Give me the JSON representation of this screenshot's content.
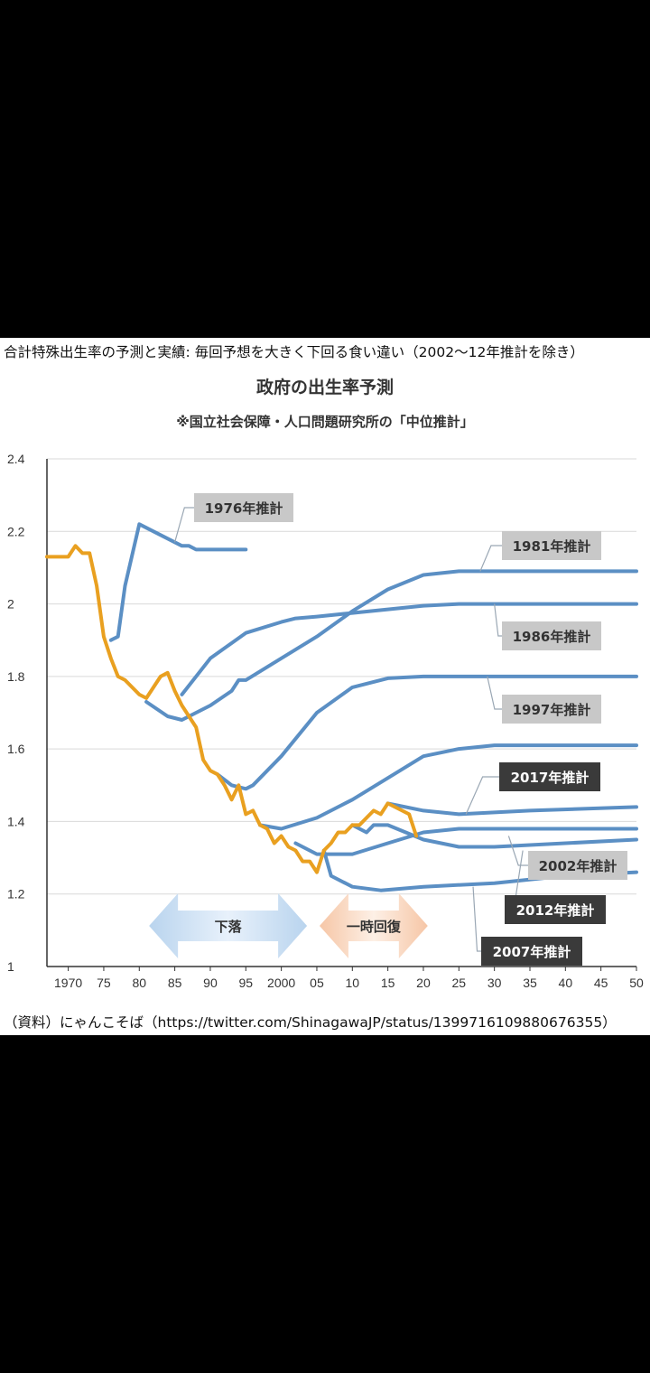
{
  "headline": "合計特殊出生率の予測と実績: 毎回予想を大きく下回る食い違い（2002〜12年推計を除き）",
  "source": "（資料）にゃんこそば（https://twitter.com/ShinagawaJP/status/1399716109880676355）",
  "colors": {
    "projection": "#5b8fc4",
    "actual": "#e9a020",
    "label_gray": "#c8c8c8",
    "label_dark": "#3a3a3a"
  },
  "chart_data": {
    "type": "line",
    "title": "政府の出生率予測",
    "subtitle": "※国立社会保障・人口問題研究所の「中位推計」",
    "xlim": [
      1967,
      2050
    ],
    "ylim": [
      1,
      2.4
    ],
    "y_ticks": [
      "1",
      "1.2",
      "1.4",
      "1.6",
      "1.8",
      "2",
      "2.2",
      "2.4"
    ],
    "y_tick_values": [
      1,
      1.2,
      1.4,
      1.6,
      1.8,
      2.0,
      2.2,
      2.4
    ],
    "x_ticks": [
      "1970",
      "75",
      "80",
      "85",
      "90",
      "95",
      "2000",
      "05",
      "10",
      "15",
      "20",
      "25",
      "30",
      "35",
      "40",
      "45",
      "50"
    ],
    "x_tick_values": [
      1970,
      1975,
      1980,
      1985,
      1990,
      1995,
      2000,
      2005,
      2010,
      2015,
      2020,
      2025,
      2030,
      2035,
      2040,
      2045,
      2050
    ],
    "arrows": [
      {
        "label": "下落",
        "from": 1981,
        "to": 2004
      },
      {
        "label": "一時回復",
        "from": 2005,
        "to": 2021
      }
    ],
    "series": [
      {
        "name": "実績",
        "kind": "actual",
        "points": [
          [
            1967,
            2.13
          ],
          [
            1968,
            2.13
          ],
          [
            1969,
            2.13
          ],
          [
            1970,
            2.13
          ],
          [
            1971,
            2.16
          ],
          [
            1972,
            2.14
          ],
          [
            1973,
            2.14
          ],
          [
            1974,
            2.05
          ],
          [
            1975,
            1.91
          ],
          [
            1976,
            1.85
          ],
          [
            1977,
            1.8
          ],
          [
            1978,
            1.79
          ],
          [
            1979,
            1.77
          ],
          [
            1980,
            1.75
          ],
          [
            1981,
            1.74
          ],
          [
            1982,
            1.77
          ],
          [
            1983,
            1.8
          ],
          [
            1984,
            1.81
          ],
          [
            1985,
            1.76
          ],
          [
            1986,
            1.72
          ],
          [
            1987,
            1.69
          ],
          [
            1988,
            1.66
          ],
          [
            1989,
            1.57
          ],
          [
            1990,
            1.54
          ],
          [
            1991,
            1.53
          ],
          [
            1992,
            1.5
          ],
          [
            1993,
            1.46
          ],
          [
            1994,
            1.5
          ],
          [
            1995,
            1.42
          ],
          [
            1996,
            1.43
          ],
          [
            1997,
            1.39
          ],
          [
            1998,
            1.38
          ],
          [
            1999,
            1.34
          ],
          [
            2000,
            1.36
          ],
          [
            2001,
            1.33
          ],
          [
            2002,
            1.32
          ],
          [
            2003,
            1.29
          ],
          [
            2004,
            1.29
          ],
          [
            2005,
            1.26
          ],
          [
            2006,
            1.32
          ],
          [
            2007,
            1.34
          ],
          [
            2008,
            1.37
          ],
          [
            2009,
            1.37
          ],
          [
            2010,
            1.39
          ],
          [
            2011,
            1.39
          ],
          [
            2012,
            1.41
          ],
          [
            2013,
            1.43
          ],
          [
            2014,
            1.42
          ],
          [
            2015,
            1.45
          ],
          [
            2016,
            1.44
          ],
          [
            2017,
            1.43
          ],
          [
            2018,
            1.42
          ],
          [
            2019,
            1.36
          ]
        ]
      },
      {
        "name": "1976年推計",
        "label": "1976年推計",
        "style": "gray",
        "points": [
          [
            1976,
            1.9
          ],
          [
            1977,
            1.91
          ],
          [
            1978,
            2.05
          ],
          [
            1980,
            2.22
          ],
          [
            1985,
            2.17
          ],
          [
            1986,
            2.16
          ],
          [
            1987,
            2.16
          ],
          [
            1988,
            2.15
          ],
          [
            1995,
            2.15
          ]
        ]
      },
      {
        "name": "1981年推計",
        "label": "1981年推計",
        "style": "gray",
        "points": [
          [
            1981,
            1.73
          ],
          [
            1984,
            1.69
          ],
          [
            1986,
            1.68
          ],
          [
            1990,
            1.72
          ],
          [
            1993,
            1.76
          ],
          [
            1994,
            1.79
          ],
          [
            1995,
            1.79
          ],
          [
            2000,
            1.85
          ],
          [
            2005,
            1.91
          ],
          [
            2010,
            1.98
          ],
          [
            2015,
            2.04
          ],
          [
            2020,
            2.08
          ],
          [
            2025,
            2.09
          ],
          [
            2050,
            2.09
          ]
        ]
      },
      {
        "name": "1986年推計",
        "label": "1986年推計",
        "style": "gray",
        "points": [
          [
            1986,
            1.75
          ],
          [
            1990,
            1.85
          ],
          [
            1995,
            1.92
          ],
          [
            2000,
            1.95
          ],
          [
            2002,
            1.96
          ],
          [
            2005,
            1.965
          ],
          [
            2010,
            1.975
          ],
          [
            2015,
            1.985
          ],
          [
            2020,
            1.995
          ],
          [
            2025,
            2.0
          ],
          [
            2050,
            2.0
          ]
        ]
      },
      {
        "name": "1997年推計",
        "label": "1997年推計",
        "style": "gray",
        "points": [
          [
            1991,
            1.53
          ],
          [
            1993,
            1.5
          ],
          [
            1995,
            1.49
          ],
          [
            1996,
            1.5
          ],
          [
            2000,
            1.58
          ],
          [
            2005,
            1.7
          ],
          [
            2010,
            1.77
          ],
          [
            2012,
            1.78
          ],
          [
            2015,
            1.795
          ],
          [
            2020,
            1.8
          ],
          [
            2050,
            1.8
          ]
        ]
      },
      {
        "name": "2002年推計",
        "label": "2002年推計",
        "style": "gray",
        "points": [
          [
            1997,
            1.39
          ],
          [
            2000,
            1.38
          ],
          [
            2005,
            1.41
          ],
          [
            2010,
            1.46
          ],
          [
            2015,
            1.52
          ],
          [
            2020,
            1.58
          ],
          [
            2025,
            1.6
          ],
          [
            2030,
            1.61
          ],
          [
            2050,
            1.61
          ]
        ]
      },
      {
        "name": "2007年推計",
        "label": "2007年推計",
        "style": "dark",
        "points": [
          [
            2006,
            1.32
          ],
          [
            2007,
            1.25
          ],
          [
            2010,
            1.22
          ],
          [
            2014,
            1.21
          ],
          [
            2020,
            1.22
          ],
          [
            2030,
            1.23
          ],
          [
            2040,
            1.25
          ],
          [
            2050,
            1.26
          ]
        ]
      },
      {
        "name": "2012年推計",
        "label": "2012年推計",
        "style": "dark",
        "points": [
          [
            2002,
            1.34
          ],
          [
            2005,
            1.31
          ],
          [
            2010,
            1.31
          ],
          [
            2015,
            1.34
          ],
          [
            2020,
            1.37
          ],
          [
            2025,
            1.38
          ],
          [
            2030,
            1.38
          ],
          [
            2050,
            1.38
          ]
        ]
      },
      {
        "name": "2017年推計",
        "label": "2017年推計",
        "style": "dark",
        "points": [
          [
            2010,
            1.39
          ],
          [
            2011,
            1.38
          ],
          [
            2012,
            1.37
          ],
          [
            2013,
            1.39
          ],
          [
            2015,
            1.39
          ],
          [
            2020,
            1.35
          ],
          [
            2025,
            1.33
          ],
          [
            2030,
            1.33
          ],
          [
            2050,
            1.35
          ]
        ]
      },
      {
        "name": "2017年推計(上方)",
        "style": "dark",
        "points": [
          [
            2015,
            1.45
          ],
          [
            2020,
            1.43
          ],
          [
            2025,
            1.42
          ],
          [
            2035,
            1.43
          ],
          [
            2050,
            1.44
          ]
        ]
      }
    ],
    "labels": [
      {
        "text": "1976年推計",
        "style": "gray",
        "point_year": 1985,
        "point_value": 2.17
      },
      {
        "text": "1981年推計",
        "style": "gray",
        "point_year": 2028,
        "point_value": 2.09
      },
      {
        "text": "1986年推計",
        "style": "gray",
        "point_year": 2030,
        "point_value": 2.0
      },
      {
        "text": "1997年推計",
        "style": "gray",
        "point_year": 2029,
        "point_value": 1.8
      },
      {
        "text": "2017年推計",
        "style": "dark",
        "point_year": 2026,
        "point_value": 1.42
      },
      {
        "text": "2002年推計",
        "style": "gray",
        "point_year": 2032,
        "point_value": 1.36
      },
      {
        "text": "2012年推計",
        "style": "dark",
        "point_year": 2034,
        "point_value": 1.32
      },
      {
        "text": "2007年推計",
        "style": "dark",
        "point_year": 2027,
        "point_value": 1.22
      }
    ]
  }
}
